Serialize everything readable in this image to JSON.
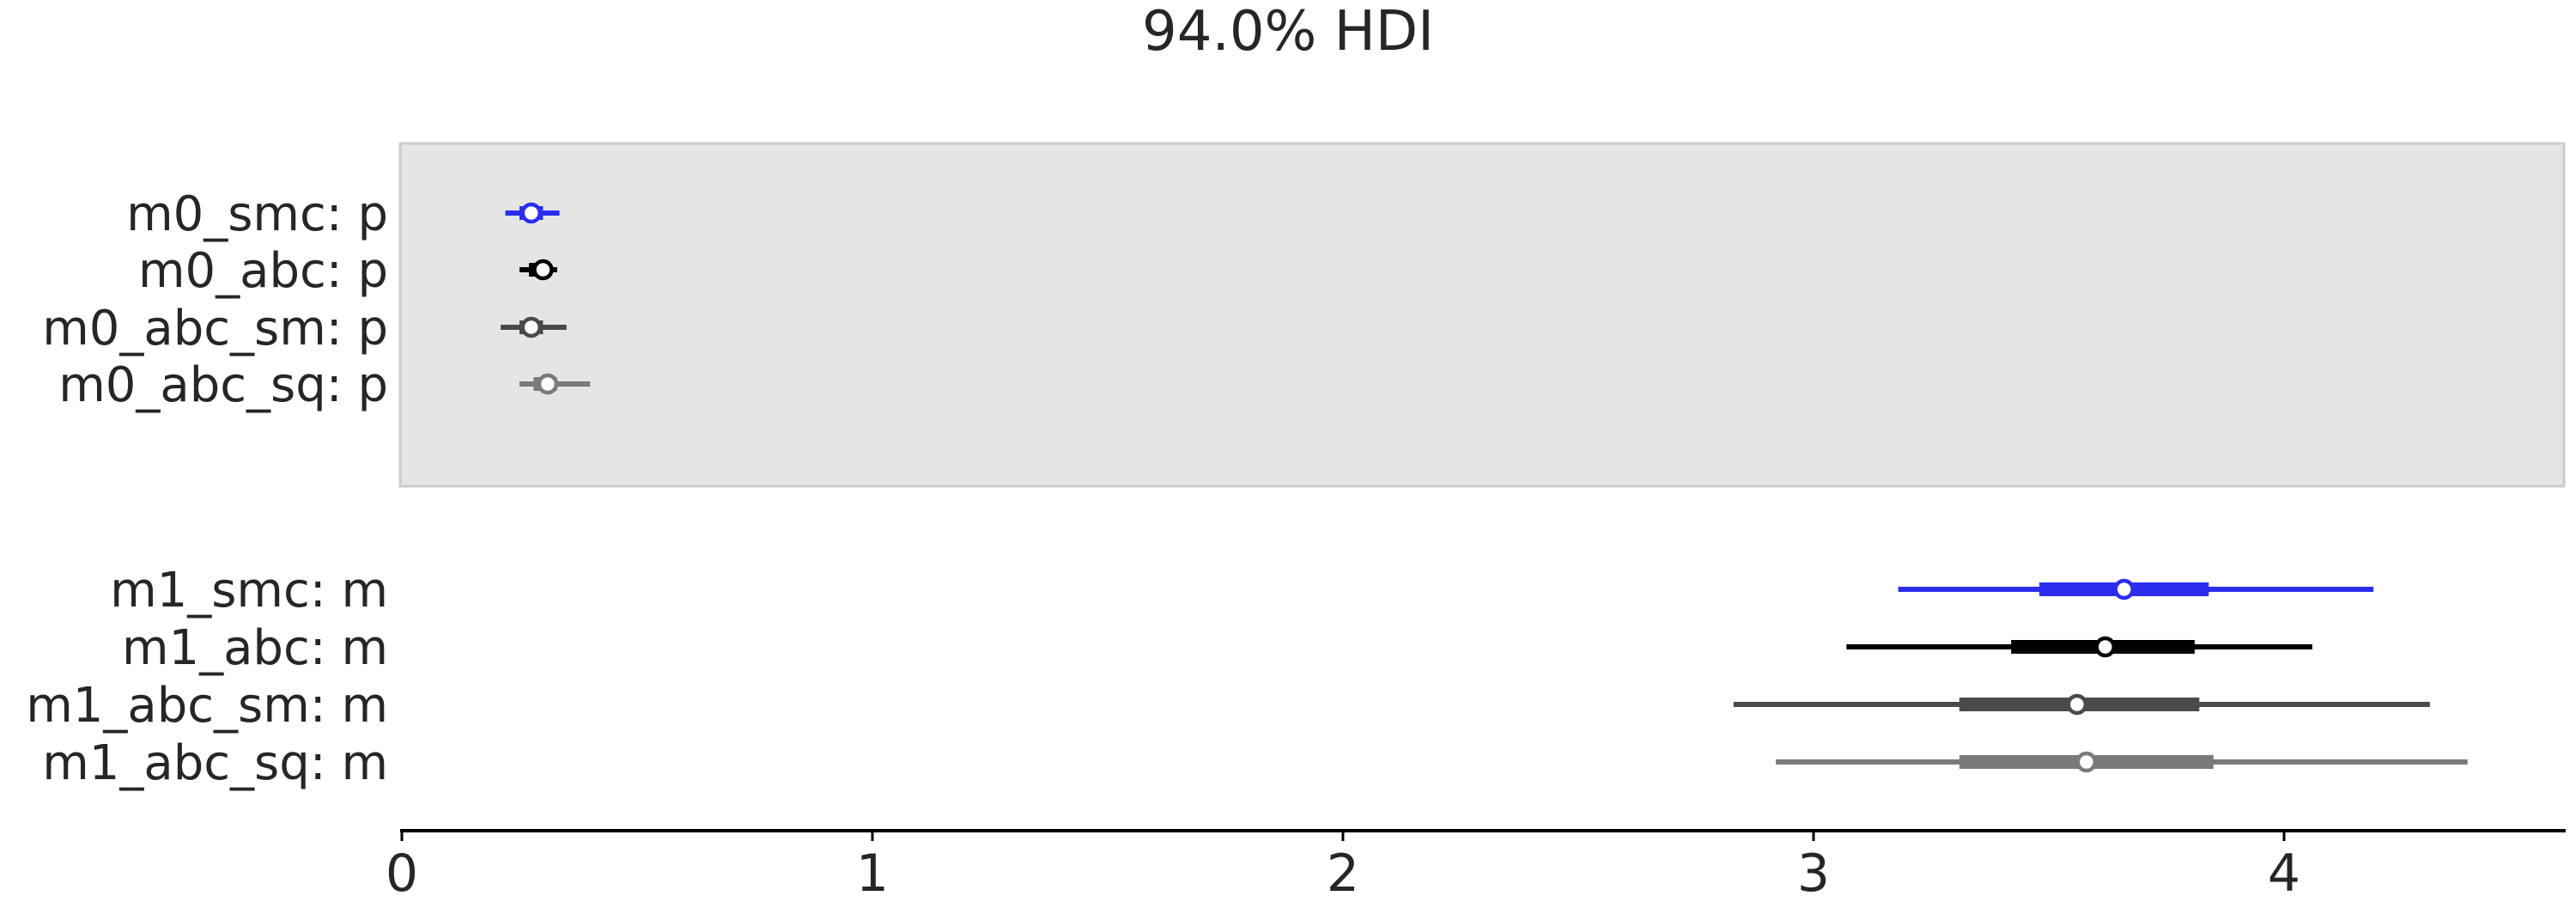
{
  "chart_data": {
    "type": "forest",
    "title": "94.0% HDI",
    "xlabel": "",
    "ylabel": "",
    "xlim": [
      0,
      4.6
    ],
    "x_ticks": [
      0,
      1,
      2,
      3,
      4
    ],
    "x_tick_labels": [
      "0",
      "1",
      "2",
      "3",
      "4"
    ],
    "grid": false,
    "legend": "none",
    "groups": [
      {
        "shaded": true,
        "rows": [
          {
            "label": "m0_smc: p",
            "color": "#2a2eec",
            "hdi_low": 0.22,
            "iqr_low": 0.25,
            "point": 0.275,
            "iqr_high": 0.3,
            "hdi_high": 0.335
          },
          {
            "label": "m0_abc: p",
            "color": "#000000",
            "hdi_low": 0.25,
            "iqr_low": 0.27,
            "point": 0.3,
            "iqr_high": 0.31,
            "hdi_high": 0.33
          },
          {
            "label": "m0_abc_sm: p",
            "color": "#4a4a4a",
            "hdi_low": 0.21,
            "iqr_low": 0.25,
            "point": 0.275,
            "iqr_high": 0.3,
            "hdi_high": 0.35
          },
          {
            "label": "m0_abc_sq: p",
            "color": "#7a7a7a",
            "hdi_low": 0.25,
            "iqr_low": 0.28,
            "point": 0.31,
            "iqr_high": 0.33,
            "hdi_high": 0.4
          }
        ]
      },
      {
        "shaded": false,
        "rows": [
          {
            "label": "m1_smc: m",
            "color": "#2a2eec",
            "hdi_low": 3.18,
            "iqr_low": 3.48,
            "point": 3.66,
            "iqr_high": 3.84,
            "hdi_high": 4.19
          },
          {
            "label": "m1_abc: m",
            "color": "#000000",
            "hdi_low": 3.07,
            "iqr_low": 3.42,
            "point": 3.62,
            "iqr_high": 3.81,
            "hdi_high": 4.06
          },
          {
            "label": "m1_abc_sm: m",
            "color": "#4a4a4a",
            "hdi_low": 2.83,
            "iqr_low": 3.31,
            "point": 3.56,
            "iqr_high": 3.82,
            "hdi_high": 4.31
          },
          {
            "label": "m1_abc_sq: m",
            "color": "#7a7a7a",
            "hdi_low": 2.92,
            "iqr_low": 3.31,
            "point": 3.58,
            "iqr_high": 3.85,
            "hdi_high": 4.39
          }
        ]
      }
    ]
  }
}
